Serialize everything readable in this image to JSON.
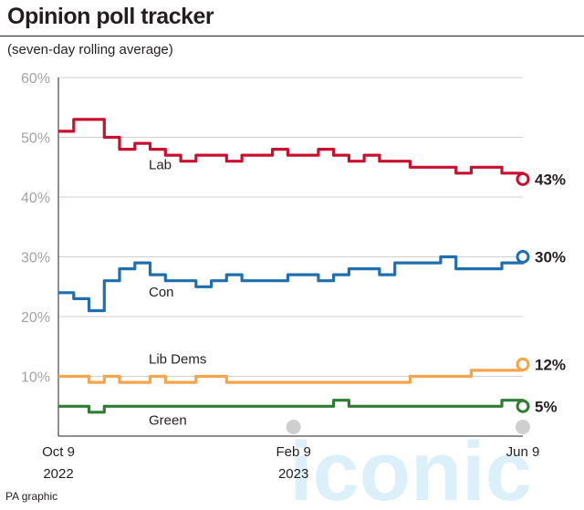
{
  "header": {
    "title": "Opinion poll tracker",
    "subtitle": "(seven-day rolling average)"
  },
  "footer": {
    "credit": "PA graphic"
  },
  "watermark": {
    "text": "iconic"
  },
  "chart_data": {
    "type": "line",
    "title": "Opinion poll tracker",
    "subtitle": "(seven-day rolling average)",
    "xlabel": "",
    "ylabel": "",
    "ylim": [
      0,
      60
    ],
    "yticks": [
      10,
      20,
      30,
      40,
      50,
      60
    ],
    "ytick_labels": [
      "10%",
      "20%",
      "30%",
      "40%",
      "50%",
      "60%"
    ],
    "xlim": [
      "2022-10-09",
      "2023-06-09"
    ],
    "xticks": [
      {
        "date": "2022-10-09",
        "line1": "Oct 9",
        "line2": "2022"
      },
      {
        "date": "2023-02-09",
        "line1": "Feb 9",
        "line2": "2023"
      },
      {
        "date": "2023-06-09",
        "line1": "Jun 9",
        "line2": ""
      }
    ],
    "grid": true,
    "x": [
      "2022-10-09",
      "2022-10-17",
      "2022-10-25",
      "2022-11-02",
      "2022-11-10",
      "2022-11-18",
      "2022-11-26",
      "2022-12-04",
      "2022-12-12",
      "2022-12-20",
      "2022-12-28",
      "2023-01-05",
      "2023-01-13",
      "2023-01-21",
      "2023-01-29",
      "2023-02-06",
      "2023-02-14",
      "2023-02-22",
      "2023-03-02",
      "2023-03-10",
      "2023-03-18",
      "2023-03-26",
      "2023-04-03",
      "2023-04-11",
      "2023-04-19",
      "2023-04-27",
      "2023-05-05",
      "2023-05-13",
      "2023-05-21",
      "2023-05-29",
      "2023-06-09"
    ],
    "series": [
      {
        "name": "Lab",
        "color": "#c8102e",
        "end_label": "43%",
        "values": [
          51,
          53,
          53,
          50,
          48,
          49,
          48,
          47,
          46,
          47,
          47,
          46,
          47,
          47,
          48,
          47,
          47,
          48,
          47,
          46,
          47,
          46,
          46,
          45,
          45,
          45,
          44,
          45,
          45,
          44,
          43
        ]
      },
      {
        "name": "Con",
        "color": "#1f6fae",
        "end_label": "30%",
        "values": [
          24,
          23,
          21,
          26,
          28,
          29,
          27,
          26,
          26,
          25,
          26,
          27,
          26,
          26,
          26,
          27,
          27,
          26,
          27,
          28,
          28,
          27,
          29,
          29,
          29,
          30,
          28,
          28,
          28,
          29,
          30
        ]
      },
      {
        "name": "Lib Dems",
        "color": "#f5a44b",
        "end_label": "12%",
        "values": [
          10,
          10,
          9,
          10,
          9,
          9,
          10,
          9,
          9,
          10,
          10,
          9,
          9,
          9,
          9,
          9,
          9,
          9,
          9,
          9,
          9,
          9,
          9,
          10,
          10,
          10,
          10,
          11,
          11,
          11,
          12
        ]
      },
      {
        "name": "Green",
        "color": "#2e7d32",
        "end_label": "5%",
        "values": [
          5,
          5,
          4,
          5,
          5,
          5,
          5,
          5,
          5,
          5,
          5,
          5,
          5,
          5,
          5,
          5,
          5,
          5,
          6,
          5,
          5,
          5,
          5,
          5,
          5,
          5,
          5,
          5,
          5,
          6,
          5
        ]
      }
    ]
  }
}
